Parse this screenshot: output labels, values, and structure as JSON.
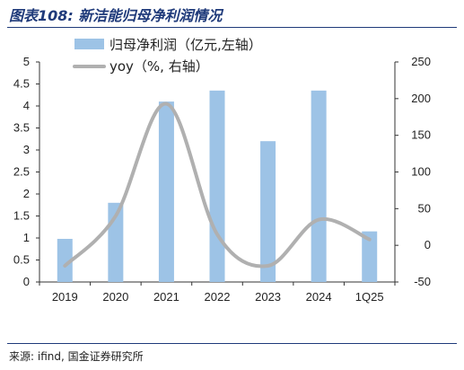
{
  "header": {
    "title": "图表108: 新洁能归母净利润情况"
  },
  "footer": {
    "source": "来源: ifind, 国金证券研究所"
  },
  "colors": {
    "bar": "#9dc3e6",
    "line": "#b0b0b0",
    "title": "#1f3a7a"
  },
  "chart_data": {
    "type": "bar",
    "categories": [
      "2019",
      "2020",
      "2021",
      "2022",
      "2023",
      "2024",
      "1Q25"
    ],
    "series": [
      {
        "name": "归母净利润（亿元,左轴）",
        "type": "bar",
        "axis": "left",
        "values": [
          0.98,
          1.8,
          4.1,
          4.35,
          3.2,
          4.35,
          1.15
        ]
      },
      {
        "name": "yoy（%, 右轴）",
        "type": "line",
        "smooth": true,
        "axis": "right",
        "values": [
          -28,
          40,
          193,
          15,
          -28,
          35,
          8
        ]
      }
    ],
    "y_left": {
      "ticks": [
        0,
        0.5,
        1,
        1.5,
        2,
        2.5,
        3,
        3.5,
        4,
        4.5,
        5
      ],
      "ylim": [
        0,
        5
      ]
    },
    "y_right": {
      "ticks": [
        -50,
        0,
        50,
        100,
        150,
        200,
        250
      ],
      "ylim": [
        -50,
        250
      ]
    },
    "legend": "top-left",
    "grid": false
  }
}
